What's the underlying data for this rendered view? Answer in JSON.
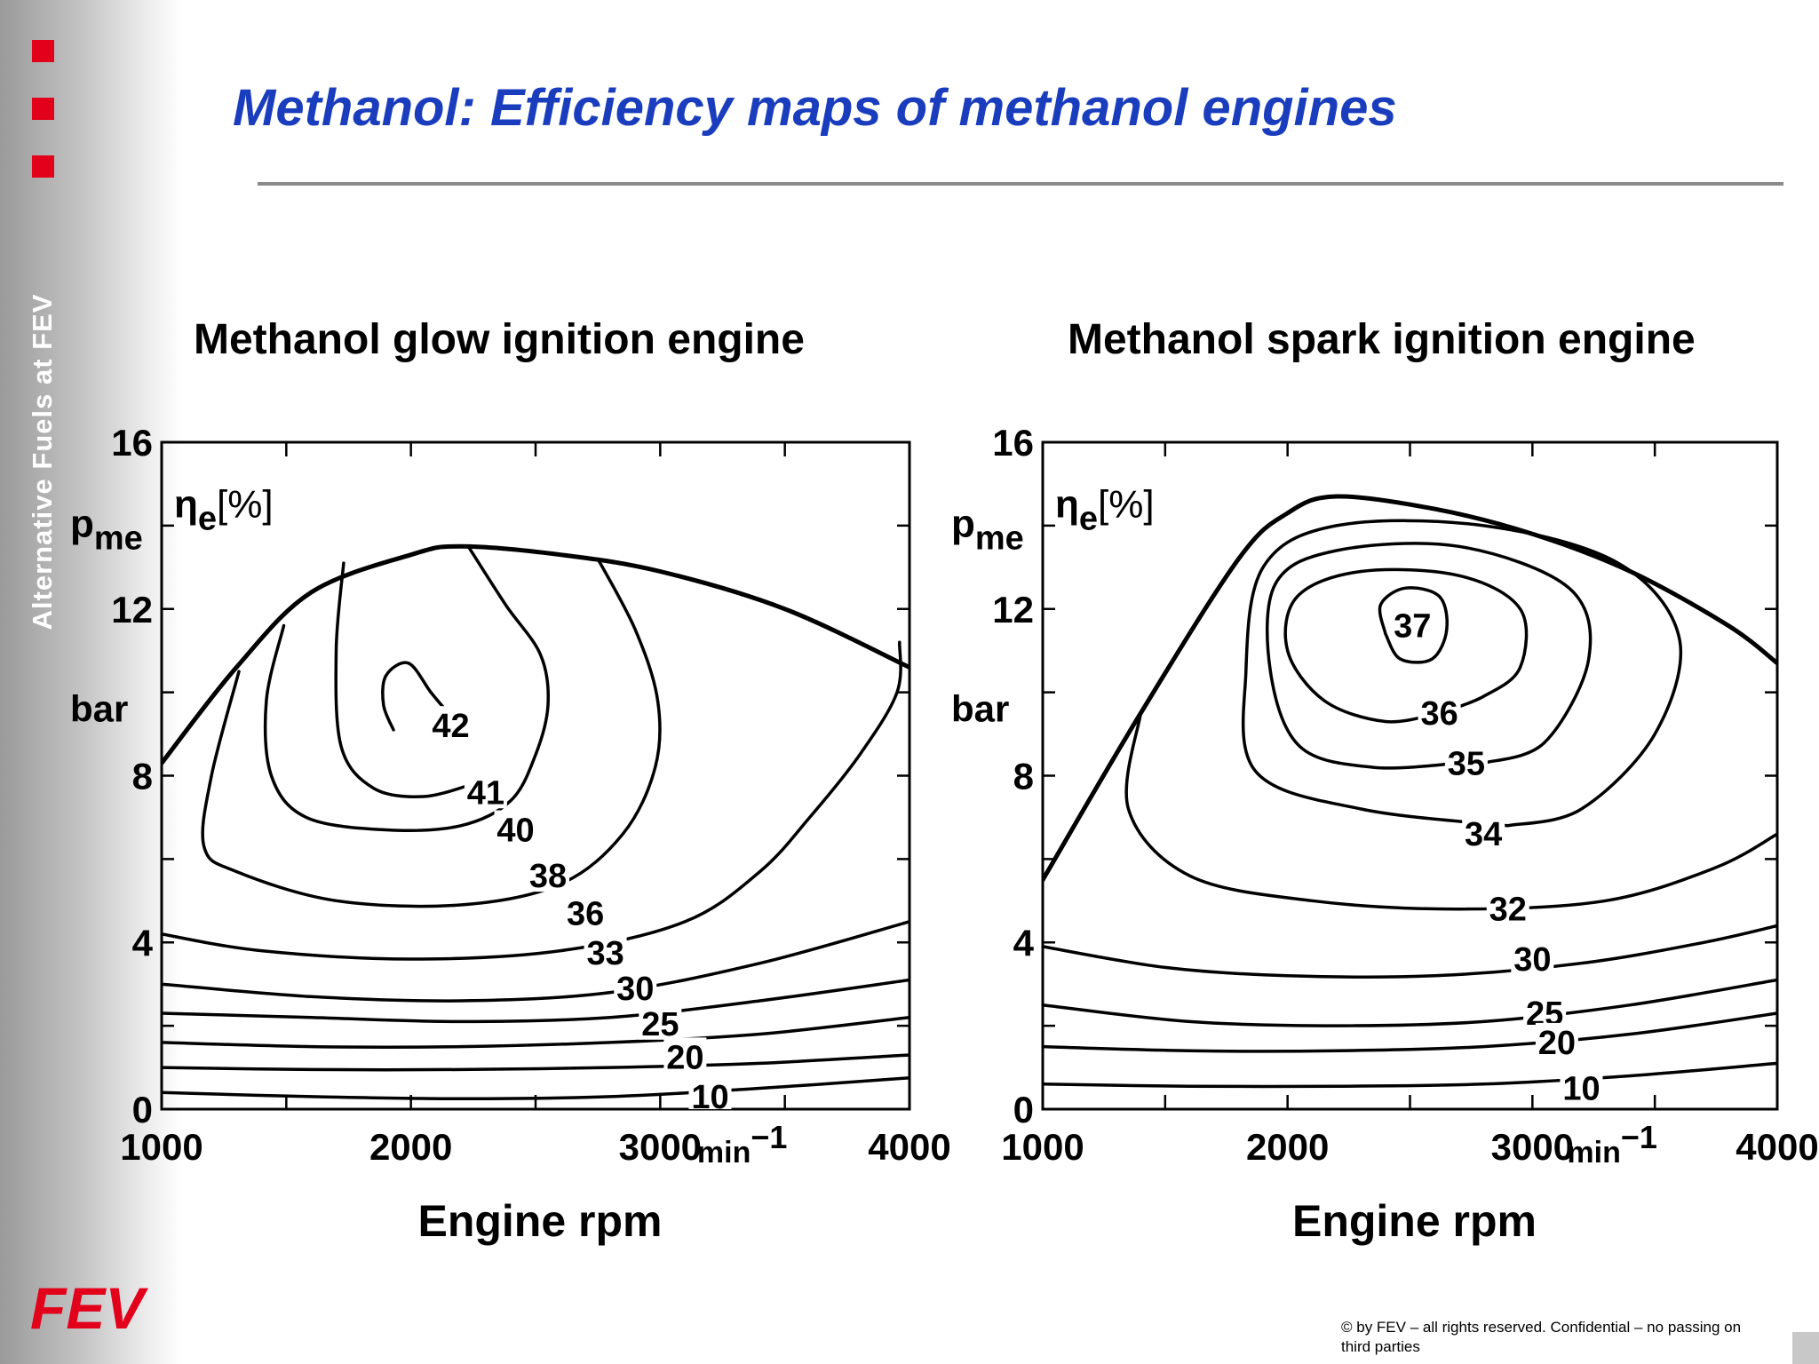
{
  "page": {
    "title": "Methanol: Efficiency maps of methanol engines",
    "sidebar_label": "Alternative Fuels at FEV",
    "logo_text": "FEV",
    "copyright": "© by FEV – all rights reserved. Confidential – no passing on third parties",
    "brand_color": "#e3001b",
    "title_color": "#1a3dbd"
  },
  "chart_data": [
    {
      "type": "contour",
      "title": "Methanol glow ignition engine",
      "xlabel": "Engine rpm",
      "x_unit": "min⁻¹",
      "ylabel_main": "p",
      "ylabel_sub": "me",
      "y_unit": "bar",
      "z_label_main": "η",
      "z_label_sub": "e",
      "z_unit": "[%]",
      "xlim": [
        1000,
        4000
      ],
      "ylim": [
        0,
        16
      ],
      "x_ticks": [
        1000,
        2000,
        3000,
        4000
      ],
      "y_ticks": [
        0,
        4,
        8,
        12,
        16
      ],
      "full_load": [
        [
          1000,
          8.3
        ],
        [
          1300,
          10.6
        ],
        [
          1600,
          12.4
        ],
        [
          2000,
          13.3
        ],
        [
          2200,
          13.5
        ],
        [
          2600,
          13.3
        ],
        [
          3000,
          12.9
        ],
        [
          3500,
          12.0
        ],
        [
          4000,
          10.6
        ]
      ],
      "contours": [
        {
          "level": "42",
          "points": [
            [
              1930,
              9.1
            ],
            [
              1890,
              9.7
            ],
            [
              1900,
              10.4
            ],
            [
              1990,
              10.7
            ],
            [
              2080,
              10.0
            ],
            [
              2150,
              9.5
            ]
          ],
          "label_at": [
            2160,
            9.2
          ]
        },
        {
          "level": "41",
          "points": [
            [
              1730,
              13.1
            ],
            [
              1700,
              11.0
            ],
            [
              1720,
              8.7
            ],
            [
              1850,
              7.7
            ],
            [
              2050,
              7.5
            ],
            [
              2250,
              7.8
            ]
          ],
          "label_at": [
            2300,
            7.6
          ]
        },
        {
          "level": "40",
          "points": [
            [
              1490,
              11.6
            ],
            [
              1420,
              9.8
            ],
            [
              1440,
              8.0
            ],
            [
              1580,
              7.0
            ],
            [
              1900,
              6.7
            ],
            [
              2200,
              6.8
            ],
            [
              2400,
              7.4
            ],
            [
              2500,
              8.5
            ],
            [
              2550,
              9.7
            ],
            [
              2520,
              10.9
            ],
            [
              2380,
              12.1
            ],
            [
              2230,
              13.5
            ]
          ],
          "label_at": [
            2420,
            6.7
          ]
        },
        {
          "level": "38",
          "points": [
            [
              1310,
              10.5
            ],
            [
              1200,
              8.0
            ],
            [
              1170,
              6.3
            ],
            [
              1300,
              5.7
            ],
            [
              1700,
              5.0
            ],
            [
              2200,
              4.9
            ],
            [
              2600,
              5.4
            ],
            [
              2850,
              6.6
            ],
            [
              2980,
              8.2
            ],
            [
              2990,
              9.8
            ],
            [
              2900,
              11.5
            ],
            [
              2750,
              13.2
            ]
          ],
          "label_at": [
            2550,
            5.6
          ]
        },
        {
          "level": "36",
          "points": [
            [
              1000,
              4.2
            ],
            [
              1400,
              3.8
            ],
            [
              2000,
              3.6
            ],
            [
              2600,
              3.8
            ],
            [
              3100,
              4.5
            ],
            [
              3400,
              5.7
            ],
            [
              3600,
              7.0
            ],
            [
              3800,
              8.5
            ],
            [
              3950,
              10.0
            ],
            [
              3960,
              11.2
            ]
          ],
          "label_at": [
            2700,
            4.7
          ]
        },
        {
          "level": "33",
          "points": [
            [
              1000,
              3.0
            ],
            [
              1600,
              2.7
            ],
            [
              2200,
              2.6
            ],
            [
              2800,
              2.8
            ],
            [
              3400,
              3.5
            ],
            [
              4000,
              4.5
            ]
          ],
          "label_at": [
            2780,
            3.75
          ]
        },
        {
          "level": "30",
          "points": [
            [
              1000,
              2.3
            ],
            [
              1600,
              2.2
            ],
            [
              2200,
              2.1
            ],
            [
              2800,
              2.2
            ],
            [
              3400,
              2.6
            ],
            [
              4000,
              3.1
            ]
          ],
          "label_at": [
            2900,
            2.9
          ]
        },
        {
          "level": "25",
          "points": [
            [
              1000,
              1.6
            ],
            [
              1600,
              1.5
            ],
            [
              2200,
              1.5
            ],
            [
              2800,
              1.6
            ],
            [
              3400,
              1.8
            ],
            [
              4000,
              2.2
            ]
          ],
          "label_at": [
            3000,
            2.05
          ]
        },
        {
          "level": "20",
          "points": [
            [
              1000,
              1.0
            ],
            [
              1600,
              0.95
            ],
            [
              2200,
              0.95
            ],
            [
              2800,
              1.0
            ],
            [
              3400,
              1.1
            ],
            [
              4000,
              1.3
            ]
          ],
          "label_at": [
            3100,
            1.25
          ]
        },
        {
          "level": "10",
          "points": [
            [
              1000,
              0.4
            ],
            [
              1600,
              0.3
            ],
            [
              2200,
              0.25
            ],
            [
              2800,
              0.3
            ],
            [
              3400,
              0.5
            ],
            [
              4000,
              0.75
            ]
          ],
          "label_at": [
            3200,
            0.3
          ]
        }
      ]
    },
    {
      "type": "contour",
      "title": "Methanol spark ignition engine",
      "xlabel": "Engine rpm",
      "x_unit": "min⁻¹",
      "ylabel_main": "p",
      "ylabel_sub": "me",
      "y_unit": "bar",
      "z_label_main": "η",
      "z_label_sub": "e",
      "z_unit": "[%]",
      "xlim": [
        1000,
        4000
      ],
      "ylim": [
        0,
        16
      ],
      "x_ticks": [
        1000,
        2000,
        3000,
        4000
      ],
      "y_ticks": [
        0,
        4,
        8,
        12,
        16
      ],
      "full_load": [
        [
          1000,
          5.5
        ],
        [
          1400,
          9.5
        ],
        [
          1800,
          13.2
        ],
        [
          2000,
          14.3
        ],
        [
          2200,
          14.7
        ],
        [
          2600,
          14.4
        ],
        [
          3000,
          13.8
        ],
        [
          3400,
          12.9
        ],
        [
          3800,
          11.6
        ],
        [
          4000,
          10.7
        ]
      ],
      "contours": [
        {
          "level": "37",
          "points": [
            [
              2400,
              11.4
            ],
            [
              2380,
              12.1
            ],
            [
              2480,
              12.5
            ],
            [
              2620,
              12.3
            ],
            [
              2650,
              11.5
            ],
            [
              2590,
              10.8
            ],
            [
              2460,
              10.8
            ],
            [
              2400,
              11.4
            ]
          ],
          "label_at": [
            2510,
            11.6
          ]
        },
        {
          "level": "36",
          "points": [
            [
              2620,
              9.5
            ],
            [
              2400,
              9.3
            ],
            [
              2150,
              9.8
            ],
            [
              2000,
              11.0
            ],
            [
              2040,
              12.3
            ],
            [
              2300,
              12.9
            ],
            [
              2700,
              12.8
            ],
            [
              2950,
              12.0
            ],
            [
              2950,
              10.6
            ],
            [
              2800,
              9.9
            ],
            [
              2620,
              9.5
            ]
          ],
          "label_at": [
            2620,
            9.5
          ]
        },
        {
          "level": "35",
          "points": [
            [
              2700,
              8.3
            ],
            [
              2350,
              8.2
            ],
            [
              2050,
              8.7
            ],
            [
              1930,
              10.5
            ],
            [
              1950,
              12.6
            ],
            [
              2200,
              13.4
            ],
            [
              2700,
              13.5
            ],
            [
              3150,
              12.5
            ],
            [
              3230,
              10.8
            ],
            [
              3050,
              8.8
            ],
            [
              2800,
              8.3
            ]
          ],
          "label_at": [
            2730,
            8.3
          ]
        },
        {
          "level": "34",
          "points": [
            [
              2900,
              6.8
            ],
            [
              2300,
              7.2
            ],
            [
              1870,
              8.1
            ],
            [
              1830,
              10.5
            ],
            [
              1900,
              13.0
            ],
            [
              2200,
              14.0
            ],
            [
              2800,
              14.0
            ],
            [
              3350,
              13.1
            ],
            [
              3600,
              11.3
            ],
            [
              3500,
              9.0
            ],
            [
              3200,
              7.2
            ],
            [
              2900,
              6.8
            ]
          ],
          "label_at": [
            2800,
            6.6
          ]
        },
        {
          "level": "32",
          "points": [
            [
              1400,
              9.5
            ],
            [
              1350,
              7.2
            ],
            [
              1600,
              5.6
            ],
            [
              2100,
              5.0
            ],
            [
              2700,
              4.8
            ],
            [
              3300,
              5.0
            ],
            [
              3750,
              5.8
            ],
            [
              4000,
              6.6
            ]
          ],
          "label_at": [
            2900,
            4.8
          ]
        },
        {
          "level": "30",
          "points": [
            [
              1000,
              3.9
            ],
            [
              1500,
              3.4
            ],
            [
              2000,
              3.2
            ],
            [
              2600,
              3.2
            ],
            [
              3200,
              3.5
            ],
            [
              3700,
              4.0
            ],
            [
              4000,
              4.4
            ]
          ],
          "label_at": [
            3000,
            3.6
          ]
        },
        {
          "level": "25",
          "points": [
            [
              1000,
              2.5
            ],
            [
              1600,
              2.1
            ],
            [
              2200,
              2.0
            ],
            [
              2800,
              2.1
            ],
            [
              3400,
              2.5
            ],
            [
              4000,
              3.1
            ]
          ],
          "label_at": [
            3050,
            2.3
          ]
        },
        {
          "level": "20",
          "points": [
            [
              1000,
              1.5
            ],
            [
              1600,
              1.4
            ],
            [
              2200,
              1.4
            ],
            [
              2800,
              1.5
            ],
            [
              3400,
              1.8
            ],
            [
              4000,
              2.3
            ]
          ],
          "label_at": [
            3100,
            1.6
          ]
        },
        {
          "level": "10",
          "points": [
            [
              1000,
              0.6
            ],
            [
              1600,
              0.55
            ],
            [
              2200,
              0.55
            ],
            [
              2800,
              0.6
            ],
            [
              3400,
              0.8
            ],
            [
              4000,
              1.1
            ]
          ],
          "label_at": [
            3200,
            0.5
          ]
        }
      ]
    }
  ]
}
